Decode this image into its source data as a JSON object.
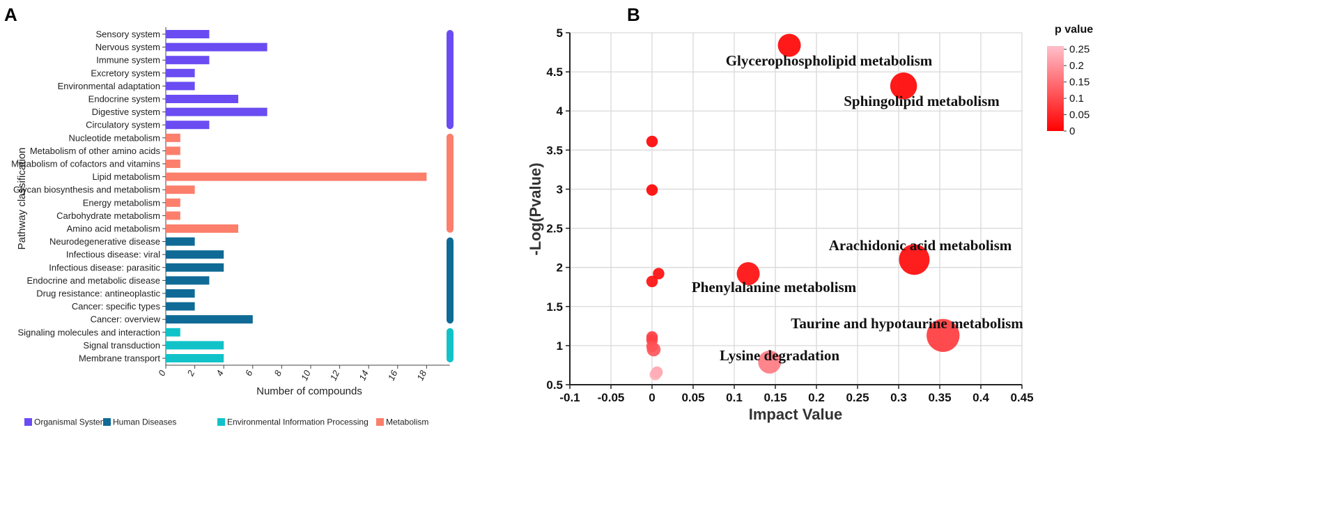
{
  "panels": {
    "a": "A",
    "b": "B"
  },
  "chart_data": [
    {
      "type": "bar",
      "orientation": "horizontal",
      "ylabel": "Pathway classification",
      "xlabel": "Number of compounds",
      "xlim": [
        0,
        19.6
      ],
      "xticks": [
        0,
        2,
        4,
        6,
        8,
        10,
        12,
        14,
        16,
        18
      ],
      "categories": [
        {
          "label": "Sensory system",
          "value": 3,
          "group": "Organismal Systems"
        },
        {
          "label": "Nervous system",
          "value": 7,
          "group": "Organismal Systems"
        },
        {
          "label": "Immune system",
          "value": 3,
          "group": "Organismal Systems"
        },
        {
          "label": "Excretory system",
          "value": 2,
          "group": "Organismal Systems"
        },
        {
          "label": "Environmental adaptation",
          "value": 2,
          "group": "Organismal Systems"
        },
        {
          "label": "Endocrine system",
          "value": 5,
          "group": "Organismal Systems"
        },
        {
          "label": "Digestive system",
          "value": 7,
          "group": "Organismal Systems"
        },
        {
          "label": "Circulatory system",
          "value": 3,
          "group": "Organismal Systems"
        },
        {
          "label": "Nucleotide metabolism",
          "value": 1,
          "group": "Metabolism"
        },
        {
          "label": "Metabolism of other amino acids",
          "value": 1,
          "group": "Metabolism"
        },
        {
          "label": "Metabolism of cofactors and vitamins",
          "value": 1,
          "group": "Metabolism"
        },
        {
          "label": "Lipid metabolism",
          "value": 18,
          "group": "Metabolism"
        },
        {
          "label": "Glycan biosynthesis and metabolism",
          "value": 2,
          "group": "Metabolism"
        },
        {
          "label": "Energy metabolism",
          "value": 1,
          "group": "Metabolism"
        },
        {
          "label": "Carbohydrate metabolism",
          "value": 1,
          "group": "Metabolism"
        },
        {
          "label": "Amino acid metabolism",
          "value": 5,
          "group": "Metabolism"
        },
        {
          "label": "Neurodegenerative disease",
          "value": 2,
          "group": "Human Diseases"
        },
        {
          "label": "Infectious disease: viral",
          "value": 4,
          "group": "Human Diseases"
        },
        {
          "label": "Infectious disease: parasitic",
          "value": 4,
          "group": "Human Diseases"
        },
        {
          "label": "Endocrine and metabolic disease",
          "value": 3,
          "group": "Human Diseases"
        },
        {
          "label": "Drug resistance: antineoplastic",
          "value": 2,
          "group": "Human Diseases"
        },
        {
          "label": "Cancer: specific types",
          "value": 2,
          "group": "Human Diseases"
        },
        {
          "label": "Cancer: overview",
          "value": 6,
          "group": "Human Diseases"
        },
        {
          "label": "Signaling molecules and interaction",
          "value": 1,
          "group": "Environmental Information Processing"
        },
        {
          "label": "Signal transduction",
          "value": 4,
          "group": "Environmental Information Processing"
        },
        {
          "label": "Membrane transport",
          "value": 4,
          "group": "Environmental Information Processing"
        }
      ],
      "groups": [
        {
          "name": "Organismal Systems",
          "color": "#6a4cf2"
        },
        {
          "name": "Human Diseases",
          "color": "#106a96"
        },
        {
          "name": "Environmental Information Processing",
          "color": "#11c3c9"
        },
        {
          "name": "Metabolism",
          "color": "#fc7f6c"
        }
      ],
      "legend": [
        "Organismal Systems",
        "Human Diseases",
        "Environmental Information Processing",
        "Metabolism"
      ]
    },
    {
      "type": "scatter",
      "subtype": "bubble",
      "xlabel": "Impact Value",
      "ylabel": "-Log(Pvalue)",
      "xlim": [
        -0.1,
        0.45
      ],
      "ylim": [
        0.5,
        5
      ],
      "xticks": [
        -0.1,
        -0.05,
        0,
        0.05,
        0.1,
        0.15,
        0.2,
        0.25,
        0.3,
        0.35,
        0.4,
        0.45
      ],
      "yticks": [
        0.5,
        1,
        1.5,
        2,
        2.5,
        3,
        3.5,
        4,
        4.5,
        5
      ],
      "colorbar": {
        "title": "p value",
        "min": 0,
        "max": 0.26,
        "ticks": [
          0,
          0.05,
          0.1,
          0.15,
          0.2,
          0.25
        ],
        "low_color": "#ff0000",
        "high_color": "#ffc0cb"
      },
      "points": [
        {
          "x": 0.167,
          "y": 4.84,
          "size": 3,
          "label": "Glycerophospholipid metabolism"
        },
        {
          "x": 0.306,
          "y": 4.32,
          "size": 3.5,
          "label": "Sphingolipid metabolism"
        },
        {
          "x": 0.0,
          "y": 3.61,
          "size": 1.5,
          "label": ""
        },
        {
          "x": 0.0,
          "y": 2.99,
          "size": 1.5,
          "label": ""
        },
        {
          "x": 0.319,
          "y": 2.1,
          "size": 4,
          "label": "Arachidonic acid metabolism"
        },
        {
          "x": 0.117,
          "y": 1.92,
          "size": 3,
          "label": "Phenylalanine metabolism"
        },
        {
          "x": 0.008,
          "y": 1.92,
          "size": 1.5,
          "label": ""
        },
        {
          "x": 0.0,
          "y": 1.82,
          "size": 1.5,
          "label": ""
        },
        {
          "x": 0.354,
          "y": 1.13,
          "size": 4.3,
          "label": "Taurine and hypotaurine metabolism"
        },
        {
          "x": 0.0,
          "y": 1.11,
          "size": 1.5,
          "label": ""
        },
        {
          "x": 0.0,
          "y": 1.07,
          "size": 1.5,
          "label": ""
        },
        {
          "x": 0.0,
          "y": 0.99,
          "size": 1.5,
          "label": ""
        },
        {
          "x": 0.002,
          "y": 0.95,
          "size": 1.8,
          "label": ""
        },
        {
          "x": 0.143,
          "y": 0.79,
          "size": 3,
          "label": "Lysine degradation"
        },
        {
          "x": 0.006,
          "y": 0.66,
          "size": 1.5,
          "label": ""
        },
        {
          "x": 0.004,
          "y": 0.63,
          "size": 1.5,
          "label": ""
        }
      ]
    }
  ]
}
